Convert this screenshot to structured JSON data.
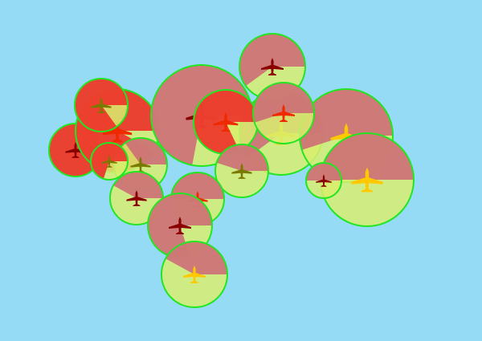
{
  "colors": {
    "background": "#96dbf6",
    "outline": "#22e622",
    "slice_red": "#ef2525",
    "slice_pink": "#cc6677",
    "slice_yellow": "#d8ee6e",
    "plane_dark": "#8a0000",
    "plane_red": "#ef2a00",
    "plane_olive": "#7a7a00",
    "plane_yellow": "#ffc800"
  },
  "markers": [
    {
      "id": "m01",
      "icon": "airplane-icon",
      "dark_share": 1.0,
      "tone": "red",
      "plane": "plane_dark"
    },
    {
      "id": "m02",
      "icon": "airplane-icon",
      "dark_share": 0.92,
      "tone": "red",
      "plane": "plane_red"
    },
    {
      "id": "m03",
      "icon": "airplane-icon",
      "dark_share": 0.72,
      "tone": "pink",
      "plane": "plane_dark"
    },
    {
      "id": "m04",
      "icon": "airplane-icon",
      "dark_share": 0.6,
      "tone": "pink",
      "plane": "plane_yellow"
    },
    {
      "id": "m05",
      "icon": "airplane-icon",
      "dark_share": 0.85,
      "tone": "red",
      "plane": "plane_olive"
    },
    {
      "id": "m06",
      "icon": "airplane-icon",
      "dark_share": 0.35,
      "tone": "pink",
      "plane": "plane_olive"
    },
    {
      "id": "m07",
      "icon": "airplane-icon",
      "dark_share": 0.55,
      "tone": "pink",
      "plane": "plane_yellow"
    },
    {
      "id": "m08",
      "icon": "airplane-icon",
      "dark_share": 0.82,
      "tone": "red",
      "plane": "plane_red"
    },
    {
      "id": "m09",
      "icon": "airplane-icon",
      "dark_share": 0.7,
      "tone": "red",
      "plane": "plane_olive"
    },
    {
      "id": "m10",
      "icon": "airplane-icon",
      "dark_share": 0.6,
      "tone": "pink",
      "plane": "plane_dark"
    },
    {
      "id": "m11",
      "icon": "airplane-icon",
      "dark_share": 0.55,
      "tone": "pink",
      "plane": "plane_red"
    },
    {
      "id": "m12",
      "icon": "airplane-icon",
      "dark_share": 0.45,
      "tone": "pink",
      "plane": "plane_olive"
    },
    {
      "id": "m13",
      "icon": "airplane-icon",
      "dark_share": 0.5,
      "tone": "pink",
      "plane": "plane_red"
    },
    {
      "id": "m14",
      "icon": "airplane-icon",
      "dark_share": 0.42,
      "tone": "pink",
      "plane": "plane_dark"
    },
    {
      "id": "m15",
      "icon": "airplane-icon",
      "dark_share": 0.45,
      "tone": "pink",
      "plane": "plane_olive"
    },
    {
      "id": "m16",
      "icon": "airplane-icon",
      "dark_share": 0.5,
      "tone": "pink",
      "plane": "plane_yellow"
    },
    {
      "id": "m17",
      "icon": "airplane-icon",
      "dark_share": 0.8,
      "tone": "pink",
      "plane": "plane_dark"
    },
    {
      "id": "m18",
      "icon": "airplane-icon",
      "dark_share": 0.42,
      "tone": "pink",
      "plane": "plane_yellow"
    },
    {
      "id": "m19",
      "icon": "airplane-icon",
      "dark_share": 0.5,
      "tone": "pink",
      "plane": "plane_dark"
    }
  ]
}
